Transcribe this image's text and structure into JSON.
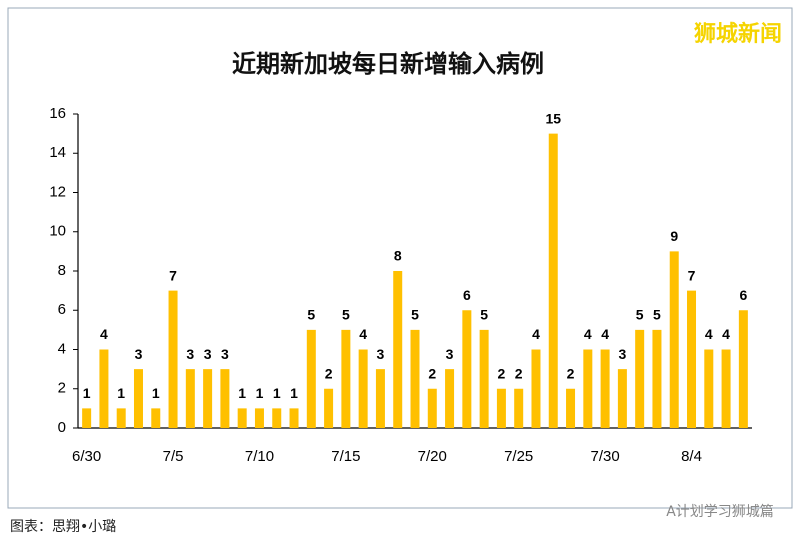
{
  "chart_data": {
    "type": "bar",
    "title": "近期新加坡每日新增输入病例",
    "categories": [
      "6/30",
      null,
      null,
      null,
      null,
      "7/5",
      null,
      null,
      null,
      null,
      "7/10",
      null,
      null,
      null,
      null,
      "7/15",
      null,
      null,
      null,
      null,
      "7/20",
      null,
      null,
      null,
      null,
      "7/25",
      null,
      null,
      null,
      null,
      "7/30",
      null,
      null,
      null,
      null,
      "8/4",
      null,
      null,
      null
    ],
    "values": [
      1,
      4,
      1,
      3,
      1,
      7,
      3,
      3,
      3,
      1,
      1,
      1,
      1,
      5,
      2,
      5,
      4,
      3,
      8,
      5,
      2,
      3,
      6,
      5,
      2,
      2,
      4,
      15,
      2,
      4,
      4,
      3,
      5,
      5,
      9,
      7,
      4,
      4,
      6
    ],
    "color": "#ffc000",
    "ylim": [
      0,
      16
    ],
    "yticks": [
      0,
      2,
      4,
      6,
      8,
      10,
      12,
      14,
      16
    ],
    "grid": false
  },
  "watermark": "狮城新闻",
  "footer_left": "图表：思翔•小璐",
  "footer_right": "A计划学习狮城篇"
}
